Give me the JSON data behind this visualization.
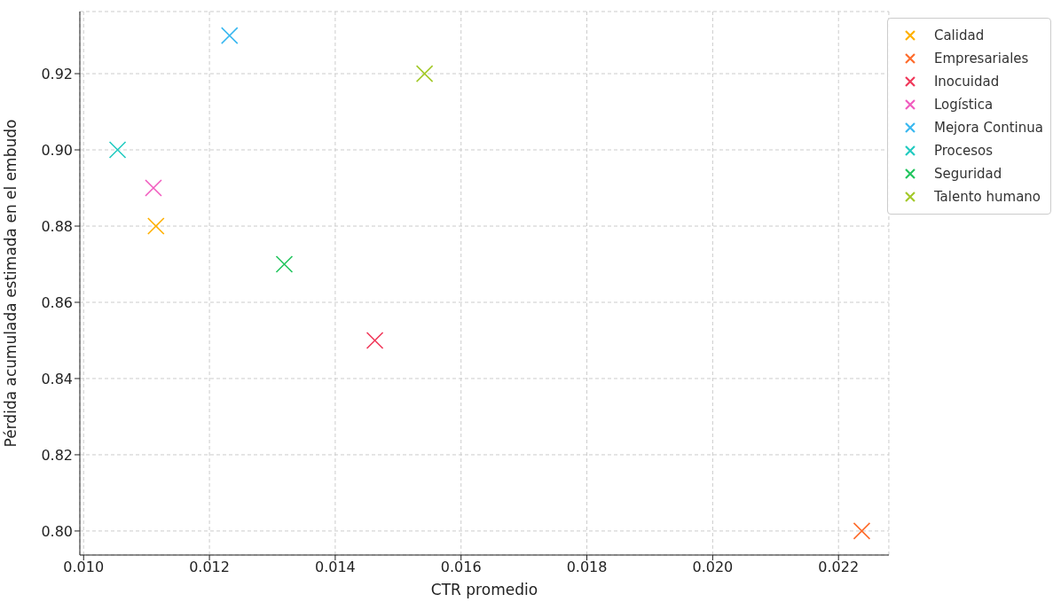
{
  "chart_data": {
    "type": "scatter",
    "xlabel": "CTR promedio",
    "ylabel": "Pérdida acumulada estimada en el embudo",
    "series": [
      {
        "name": "Calidad",
        "color": "#ffb000",
        "x": [
          0.01115
        ],
        "values": [
          0.88
        ]
      },
      {
        "name": "Empresariales",
        "color": "#fe6c2c",
        "x": [
          0.02237
        ],
        "values": [
          0.8
        ]
      },
      {
        "name": "Inocuidad",
        "color": "#f0385a",
        "x": [
          0.01463
        ],
        "values": [
          0.85
        ]
      },
      {
        "name": "Logística",
        "color": "#f15cbf",
        "x": [
          0.01111
        ],
        "values": [
          0.89
        ]
      },
      {
        "name": "Mejora Continua",
        "color": "#3ab8f0",
        "x": [
          0.01232
        ],
        "values": [
          0.93
        ]
      },
      {
        "name": "Procesos",
        "color": "#22cbc0",
        "x": [
          0.01054
        ],
        "values": [
          0.9
        ]
      },
      {
        "name": "Seguridad",
        "color": "#22c55e",
        "x": [
          0.01319
        ],
        "values": [
          0.87
        ]
      },
      {
        "name": "Talento humano",
        "color": "#a3c92a",
        "x": [
          0.01542
        ],
        "values": [
          0.92
        ]
      }
    ],
    "xlim": [
      0.00994,
      0.0228
    ],
    "xticks": [
      {
        "value": 0.01,
        "label": "0.010"
      },
      {
        "value": 0.012,
        "label": "0.012"
      },
      {
        "value": 0.014,
        "label": "0.014"
      },
      {
        "value": 0.016,
        "label": "0.016"
      },
      {
        "value": 0.018,
        "label": "0.018"
      },
      {
        "value": 0.02,
        "label": "0.020"
      },
      {
        "value": 0.022,
        "label": "0.022"
      }
    ],
    "ylim": [
      0.7937,
      0.9363
    ],
    "yticks": [
      {
        "value": 0.8,
        "label": "0.80"
      },
      {
        "value": 0.82,
        "label": "0.82"
      },
      {
        "value": 0.84,
        "label": "0.84"
      },
      {
        "value": 0.86,
        "label": "0.86"
      },
      {
        "value": 0.88,
        "label": "0.88"
      },
      {
        "value": 0.9,
        "label": "0.90"
      },
      {
        "value": 0.92,
        "label": "0.92"
      }
    ],
    "grid": true,
    "legend": "top right",
    "marker": "cross"
  }
}
